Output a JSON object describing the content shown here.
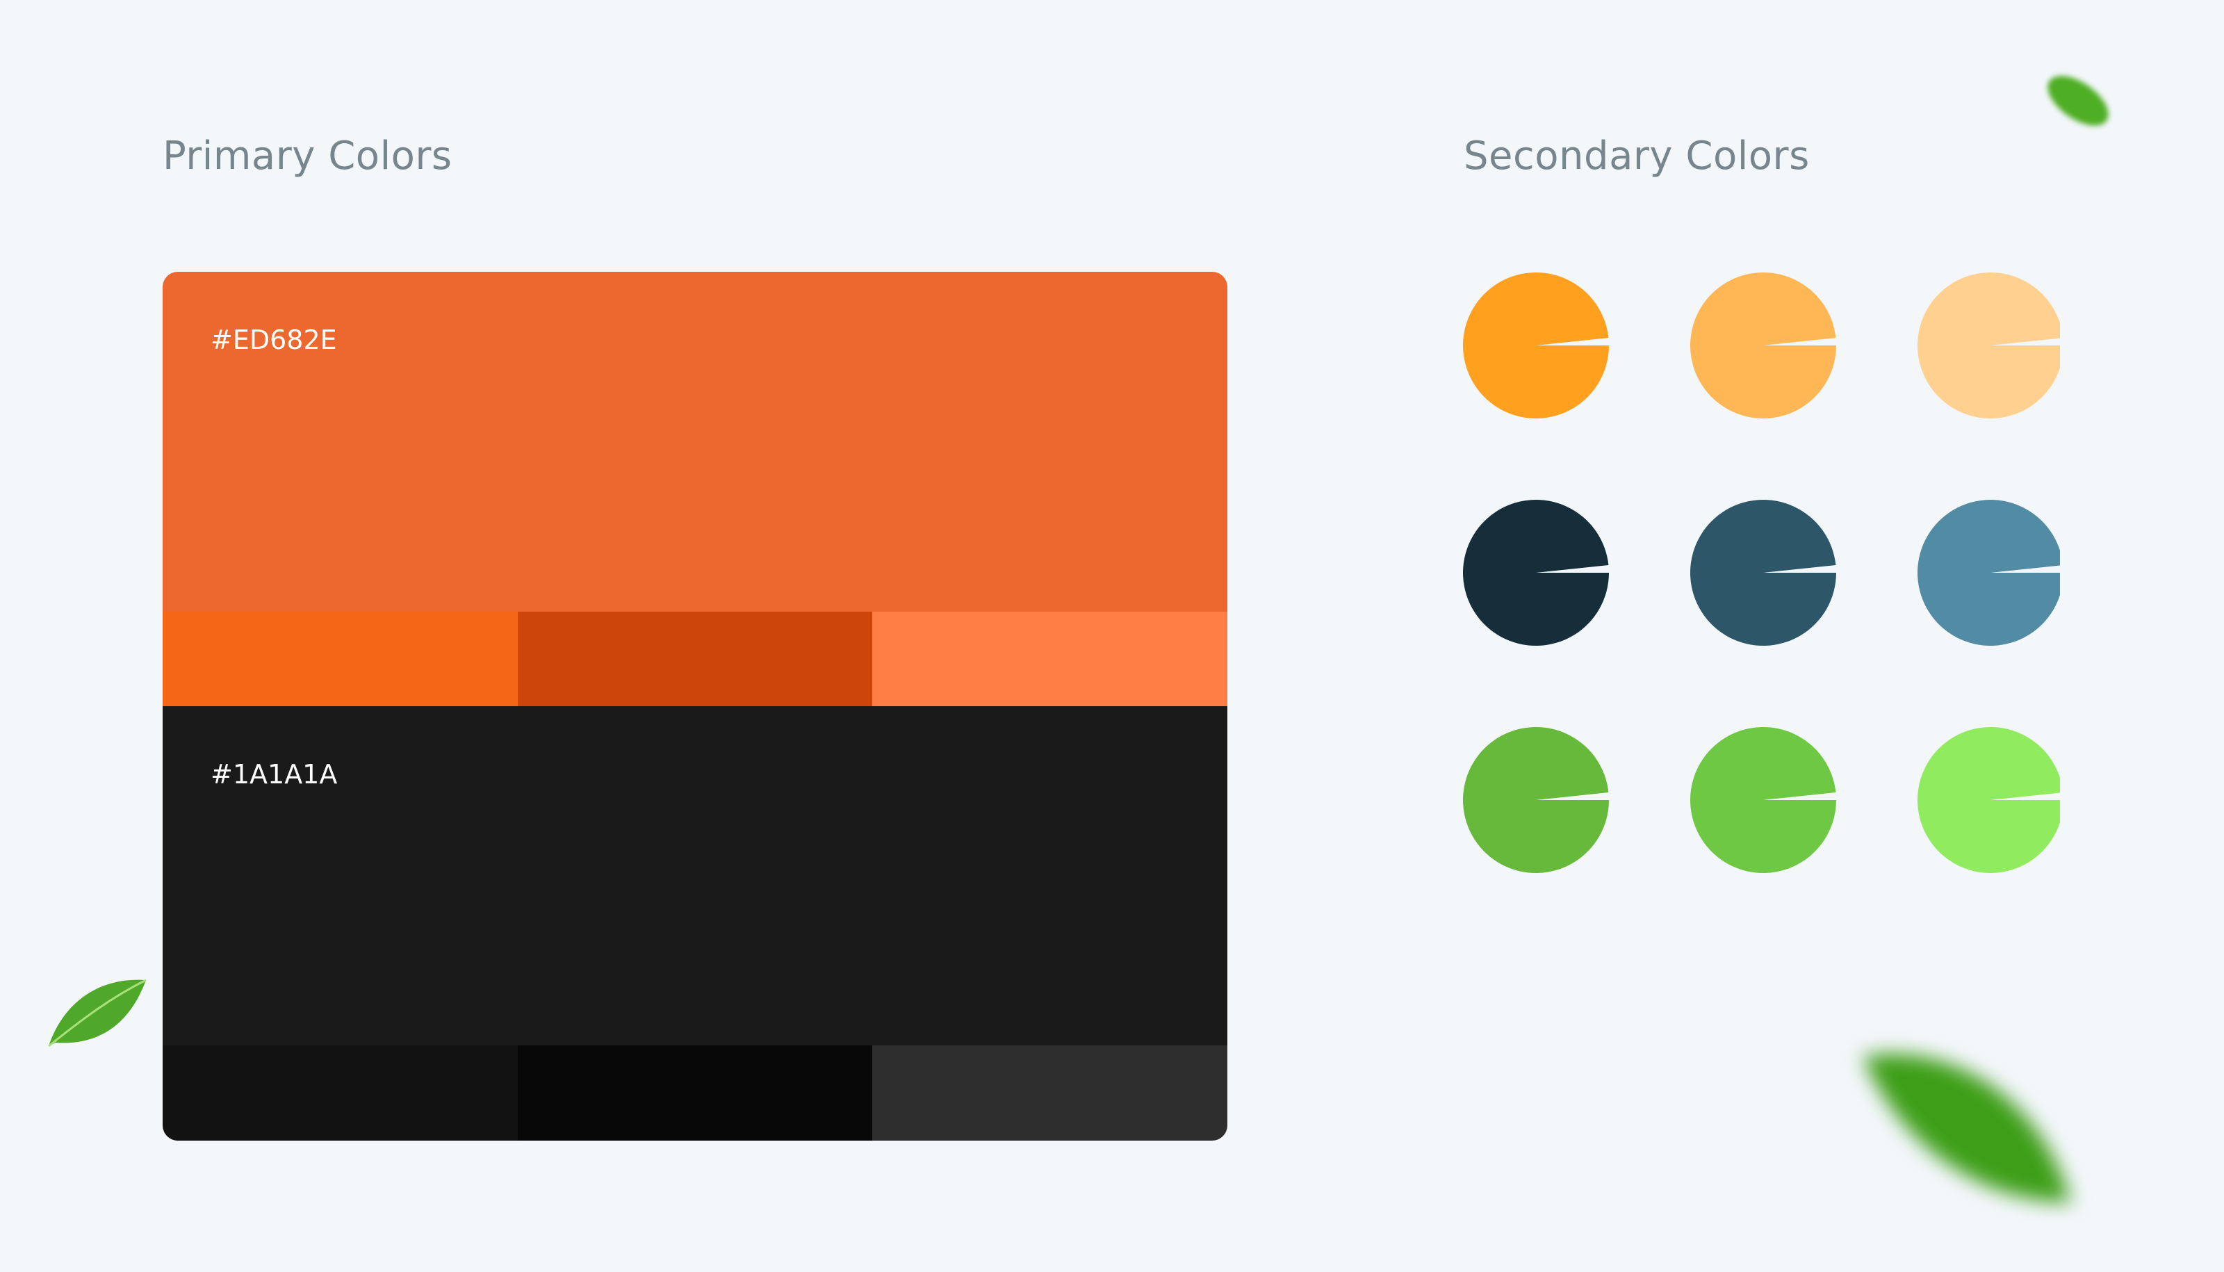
{
  "primary": {
    "title": "Primary Colors",
    "colors": [
      {
        "hex_label": "#ED682E",
        "color": "#ED682E",
        "shades": [
          "#F56616",
          "#CD450B",
          "#FF7E46"
        ]
      },
      {
        "hex_label": "#1A1A1A",
        "color": "#1A1A1A",
        "shades": [
          "#121212",
          "#080808",
          "#2E2E2E"
        ]
      }
    ]
  },
  "secondary": {
    "title": "Secondary Colors",
    "colors": [
      [
        "#FFA01F",
        "#FFB755",
        "#FFD08F"
      ],
      [
        "#152E3A",
        "#2D5668",
        "#528BA4"
      ],
      [
        "#66B93A",
        "#6FC843",
        "#91EB5E"
      ]
    ]
  },
  "decorations": [
    "leaf-icon",
    "leaf-icon",
    "leaf-icon"
  ]
}
